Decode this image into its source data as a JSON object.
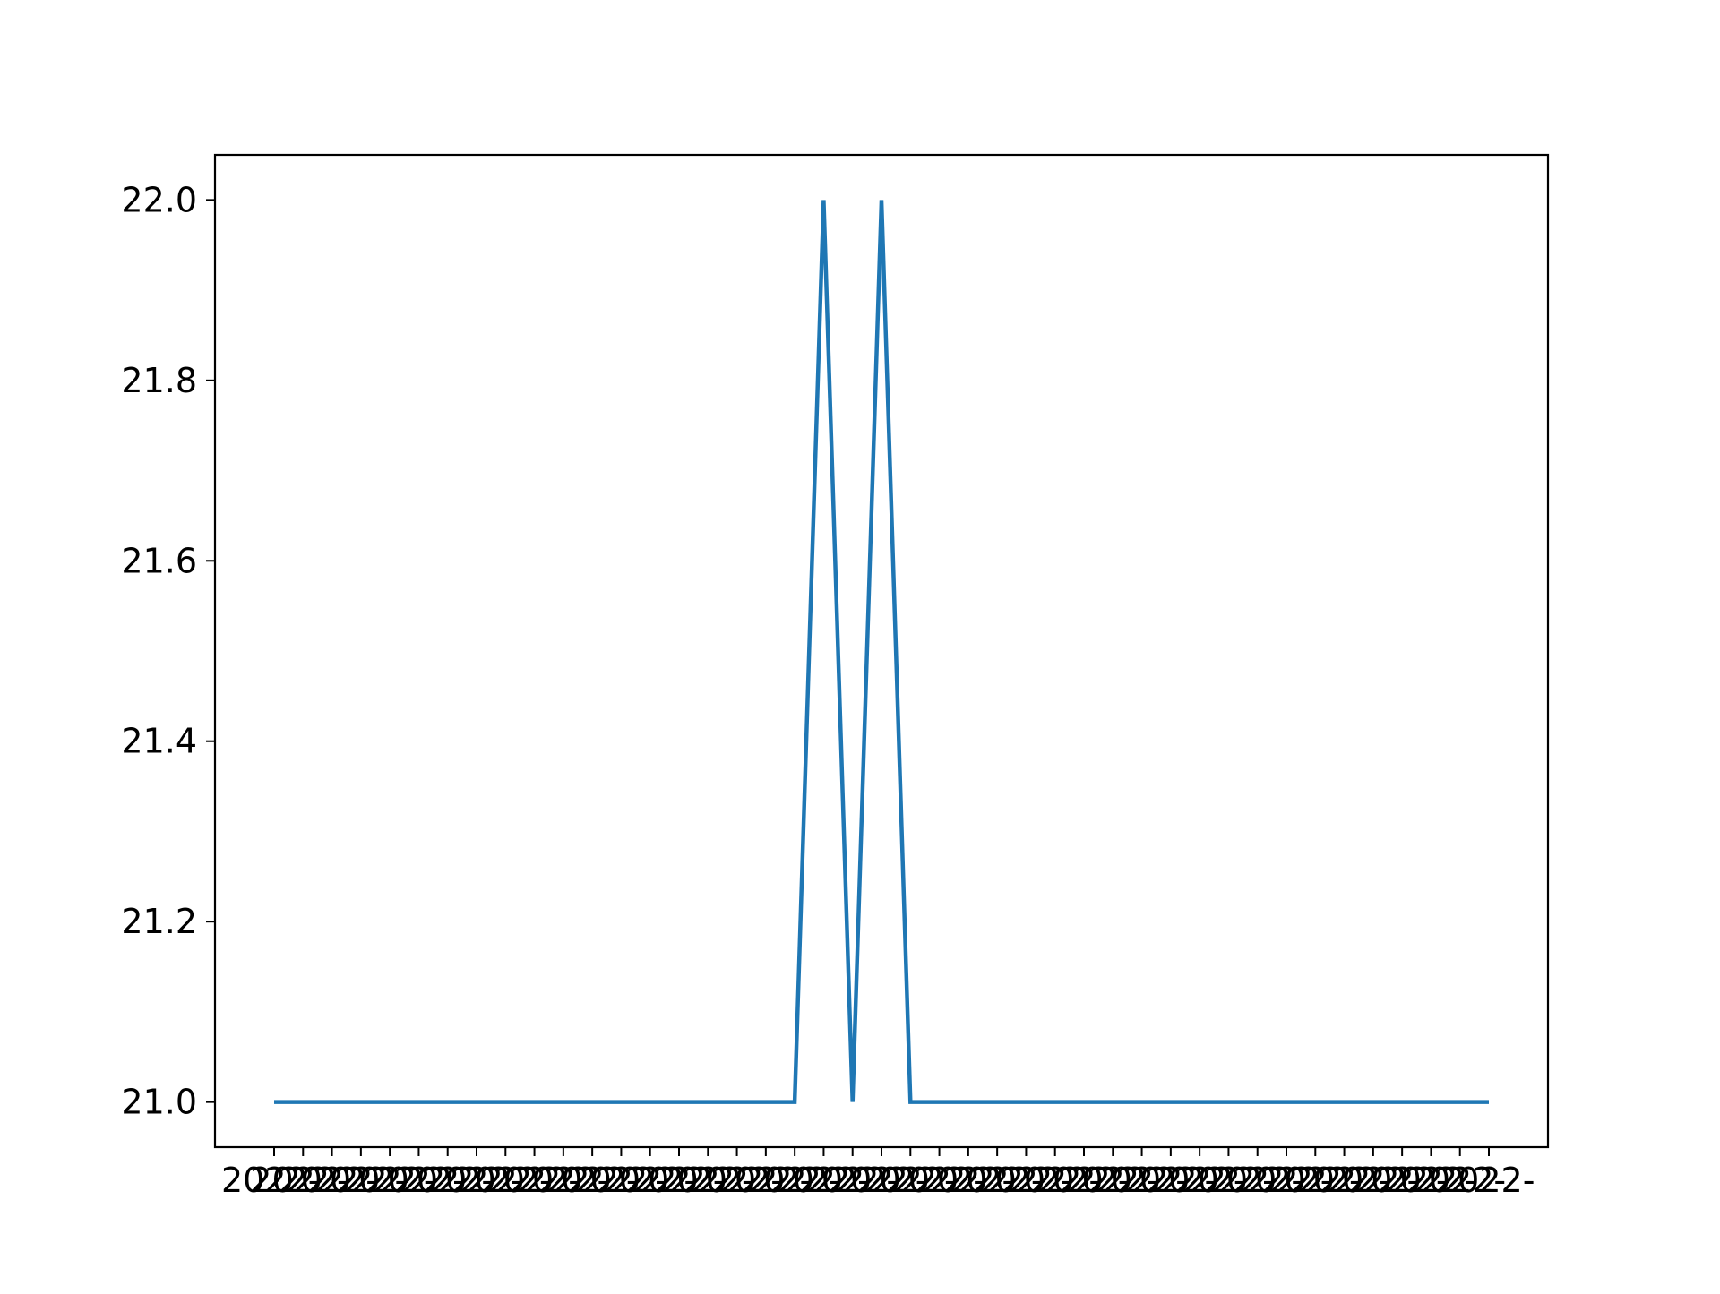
{
  "chart_data": {
    "type": "line",
    "title": "",
    "xlabel": "",
    "ylabel": "",
    "ylim": [
      20.95,
      22.05
    ],
    "yticks": [
      21.0,
      21.2,
      21.4,
      21.6,
      21.8,
      22.0
    ],
    "ytick_labels": [
      "21.0",
      "21.2",
      "21.4",
      "21.6",
      "21.8",
      "22.0"
    ],
    "x_tick_text_note": "dense overlapping date labels, illegible",
    "x_tick_visible_fragment": "2022-",
    "grid": false,
    "legend": "none",
    "series": [
      {
        "values": [
          21,
          21,
          21,
          21,
          21,
          21,
          21,
          21,
          21,
          21,
          21,
          21,
          21,
          21,
          21,
          21,
          21,
          21,
          21,
          22,
          21,
          22,
          21,
          21,
          21,
          21,
          21,
          21,
          21,
          21,
          21,
          21,
          21,
          21,
          21,
          21,
          21,
          21,
          21,
          21,
          21,
          21,
          21
        ]
      }
    ],
    "colors": {
      "line": "#1f77b4",
      "axes": "#000000",
      "background": "#ffffff"
    }
  }
}
